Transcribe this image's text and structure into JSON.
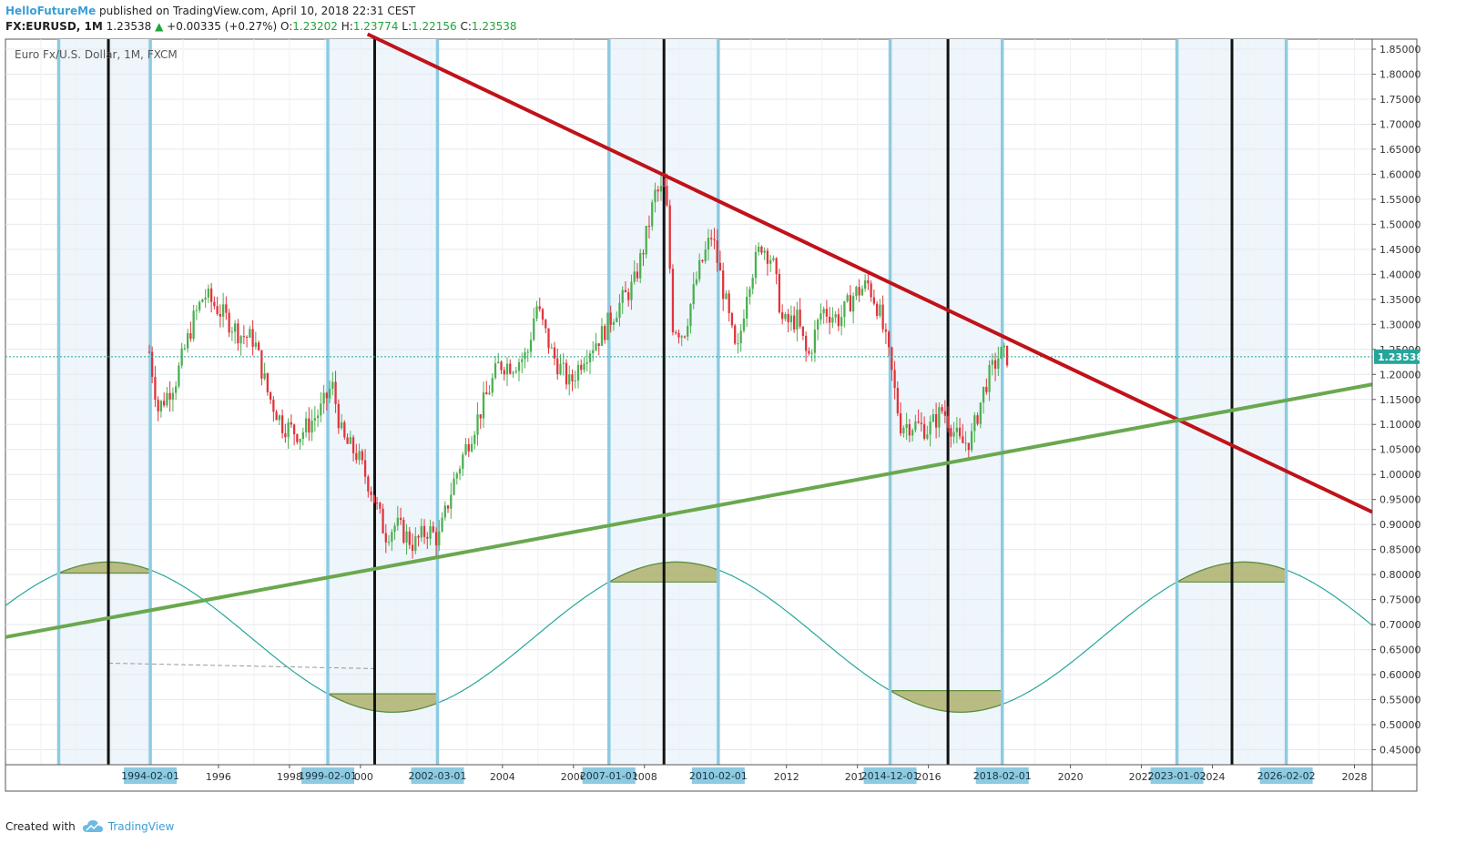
{
  "header": {
    "author": "HelloFutureMe",
    "published": " published on TradingView.com, April 10, 2018 22:31 CEST",
    "symbol": "FX:EURUSD, 1M",
    "last": "1.23538",
    "change": "+0.00335 (+0.27%)",
    "o_label": "O:",
    "o_value": "1.23202",
    "h_label": "H:",
    "h_value": "1.23774",
    "l_label": "L:",
    "l_value": "1.22156",
    "c_label": "C:",
    "c_value": "1.23538"
  },
  "footer": {
    "created_with": "Created with",
    "brand": "TradingView"
  },
  "colors": {
    "up": "#4caf50",
    "down": "#e0343b",
    "resistance": "#c0121a",
    "support": "#6aa84f",
    "cycle_line": "#8ccbe2",
    "turn_line": "#111111",
    "sine": "#26a69a",
    "price_label": "#26a69a"
  },
  "chart_data": {
    "type": "candlestick",
    "title": "Euro Fx/U.S. Dollar, 1M, FXCM",
    "ylim": [
      0.42,
      1.87
    ],
    "xlim": [
      1990.0,
      2028.5
    ],
    "y_ticks": [
      "1.85000",
      "1.80000",
      "1.75000",
      "1.70000",
      "1.65000",
      "1.60000",
      "1.55000",
      "1.50000",
      "1.45000",
      "1.40000",
      "1.35000",
      "1.30000",
      "1.25000",
      "1.20000",
      "1.15000",
      "1.10000",
      "1.05000",
      "1.00000",
      "0.95000",
      "0.90000",
      "0.85000",
      "0.80000",
      "0.75000",
      "0.70000",
      "0.65000",
      "0.60000",
      "0.55000",
      "0.50000",
      "0.45000"
    ],
    "x_ticks": [
      {
        "x": 1996,
        "label": "1996"
      },
      {
        "x": 1998,
        "label": "1998"
      },
      {
        "x": 2000,
        "label": "2000"
      },
      {
        "x": 2004,
        "label": "2004"
      },
      {
        "x": 2006,
        "label": "2006"
      },
      {
        "x": 2008,
        "label": "2008"
      },
      {
        "x": 2012,
        "label": "2012"
      },
      {
        "x": 2014,
        "label": "2014"
      },
      {
        "x": 2016,
        "label": "2016"
      },
      {
        "x": 2020,
        "label": "2020"
      },
      {
        "x": 2022,
        "label": "2022"
      },
      {
        "x": 2024,
        "label": "2024"
      },
      {
        "x": 2028,
        "label": "2028"
      }
    ],
    "current_price": "1.23538",
    "cycle_dates": [
      {
        "x": 1994.08,
        "label": "1994-02-01"
      },
      {
        "x": 1999.08,
        "label": "1999-02-01"
      },
      {
        "x": 2002.17,
        "label": "2002-03-01"
      },
      {
        "x": 2007.0,
        "label": "2007-01-01"
      },
      {
        "x": 2010.08,
        "label": "2010-02-01"
      },
      {
        "x": 2014.92,
        "label": "2014-12-01"
      },
      {
        "x": 2018.08,
        "label": "2018-02-01"
      },
      {
        "x": 2023.0,
        "label": "2023-01-02"
      },
      {
        "x": 2026.08,
        "label": "2026-02-02"
      }
    ],
    "cycle_lines": [
      1991.5,
      1994.08,
      1999.08,
      2002.17,
      2007.0,
      2010.08,
      2014.92,
      2018.08,
      2023.0,
      2026.08
    ],
    "turn_lines": [
      1992.9,
      2000.4,
      2008.55,
      2016.55,
      2024.55
    ],
    "shaded_bands": [
      [
        1991.5,
        1994.08
      ],
      [
        1999.08,
        2002.17
      ],
      [
        2007.0,
        2010.08
      ],
      [
        2014.92,
        2018.08
      ],
      [
        2023.0,
        2026.08
      ]
    ],
    "resistance_line": [
      [
        2000.2,
        1.88
      ],
      [
        2028.5,
        0.925
      ]
    ],
    "support_line": [
      [
        1990.0,
        0.675
      ],
      [
        2028.5,
        1.18
      ]
    ],
    "sine_wave": {
      "period": 16.0,
      "peak_x": 1992.9,
      "center": 0.675,
      "amplitude": 0.15
    },
    "dashed_line": [
      [
        1992.9,
        0.623
      ],
      [
        2000.4,
        0.612
      ]
    ],
    "anchors": [
      [
        1994.05,
        1.245
      ],
      [
        1994.3,
        1.13
      ],
      [
        1994.8,
        1.19
      ],
      [
        1995.3,
        1.31
      ],
      [
        1995.6,
        1.36
      ],
      [
        1996.0,
        1.33
      ],
      [
        1996.6,
        1.28
      ],
      [
        1997.0,
        1.27
      ],
      [
        1997.4,
        1.16
      ],
      [
        1997.8,
        1.1
      ],
      [
        1998.3,
        1.08
      ],
      [
        1998.9,
        1.13
      ],
      [
        1999.2,
        1.18
      ],
      [
        1999.5,
        1.07
      ],
      [
        1999.9,
        1.04
      ],
      [
        2000.3,
        0.97
      ],
      [
        2000.7,
        0.88
      ],
      [
        2001.0,
        0.9
      ],
      [
        2001.5,
        0.86
      ],
      [
        2001.9,
        0.89
      ],
      [
        2002.2,
        0.87
      ],
      [
        2002.6,
        0.98
      ],
      [
        2003.0,
        1.06
      ],
      [
        2003.4,
        1.13
      ],
      [
        2003.9,
        1.22
      ],
      [
        2004.3,
        1.22
      ],
      [
        2004.7,
        1.24
      ],
      [
        2004.95,
        1.34
      ],
      [
        2005.4,
        1.24
      ],
      [
        2005.9,
        1.18
      ],
      [
        2006.3,
        1.24
      ],
      [
        2006.8,
        1.28
      ],
      [
        2007.2,
        1.33
      ],
      [
        2007.7,
        1.38
      ],
      [
        2008.0,
        1.46
      ],
      [
        2008.3,
        1.56
      ],
      [
        2008.6,
        1.57
      ],
      [
        2008.8,
        1.3
      ],
      [
        2009.1,
        1.28
      ],
      [
        2009.5,
        1.4
      ],
      [
        2009.9,
        1.48
      ],
      [
        2010.3,
        1.34
      ],
      [
        2010.6,
        1.23
      ],
      [
        2010.9,
        1.38
      ],
      [
        2011.3,
        1.46
      ],
      [
        2011.6,
        1.43
      ],
      [
        2011.9,
        1.3
      ],
      [
        2012.3,
        1.31
      ],
      [
        2012.6,
        1.23
      ],
      [
        2013.0,
        1.33
      ],
      [
        2013.5,
        1.31
      ],
      [
        2013.9,
        1.36
      ],
      [
        2014.3,
        1.38
      ],
      [
        2014.6,
        1.33
      ],
      [
        2014.9,
        1.23
      ],
      [
        2015.2,
        1.1
      ],
      [
        2015.6,
        1.1
      ],
      [
        2016.0,
        1.09
      ],
      [
        2016.4,
        1.13
      ],
      [
        2016.9,
        1.06
      ],
      [
        2017.2,
        1.07
      ],
      [
        2017.6,
        1.18
      ],
      [
        2018.0,
        1.24
      ],
      [
        2018.25,
        1.2354
      ]
    ]
  }
}
